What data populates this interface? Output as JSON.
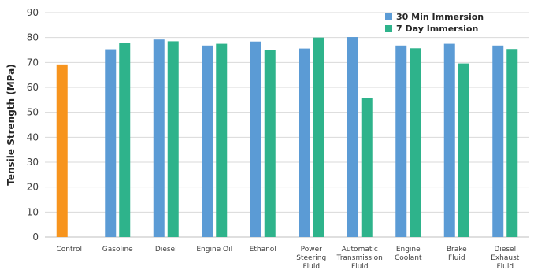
{
  "chart_data": {
    "type": "bar",
    "title": "",
    "xlabel": "",
    "ylabel": "Tensile Strength (MPa)",
    "ylim": [
      0,
      90
    ],
    "yticks": [
      0,
      10,
      20,
      30,
      40,
      50,
      60,
      70,
      80,
      90
    ],
    "grid": true,
    "legend_position": "top-right",
    "categories": [
      [
        "Control"
      ],
      [
        "Gasoline"
      ],
      [
        "Diesel"
      ],
      [
        "Engine Oil"
      ],
      [
        "Ethanol"
      ],
      [
        "Power",
        "Steering",
        "Fluid"
      ],
      [
        "Automatic",
        "Transmission",
        "Fluid"
      ],
      [
        "Engine",
        "Coolant"
      ],
      [
        "Brake",
        "Fluid"
      ],
      [
        "Diesel",
        "Exhaust",
        "Fluid"
      ]
    ],
    "control": {
      "value": 69.2,
      "color": "#f7941d"
    },
    "series": [
      {
        "name": "30 Min Immersion",
        "color": "#5b9bd5",
        "values": [
          null,
          75.3,
          79.2,
          76.8,
          78.4,
          75.6,
          80.2,
          76.8,
          77.5,
          76.8
        ]
      },
      {
        "name": "7 Day Immersion",
        "color": "#2eb38b",
        "values": [
          null,
          77.8,
          78.5,
          77.5,
          75.1,
          80.0,
          55.6,
          75.7,
          69.6,
          75.4
        ]
      }
    ]
  }
}
